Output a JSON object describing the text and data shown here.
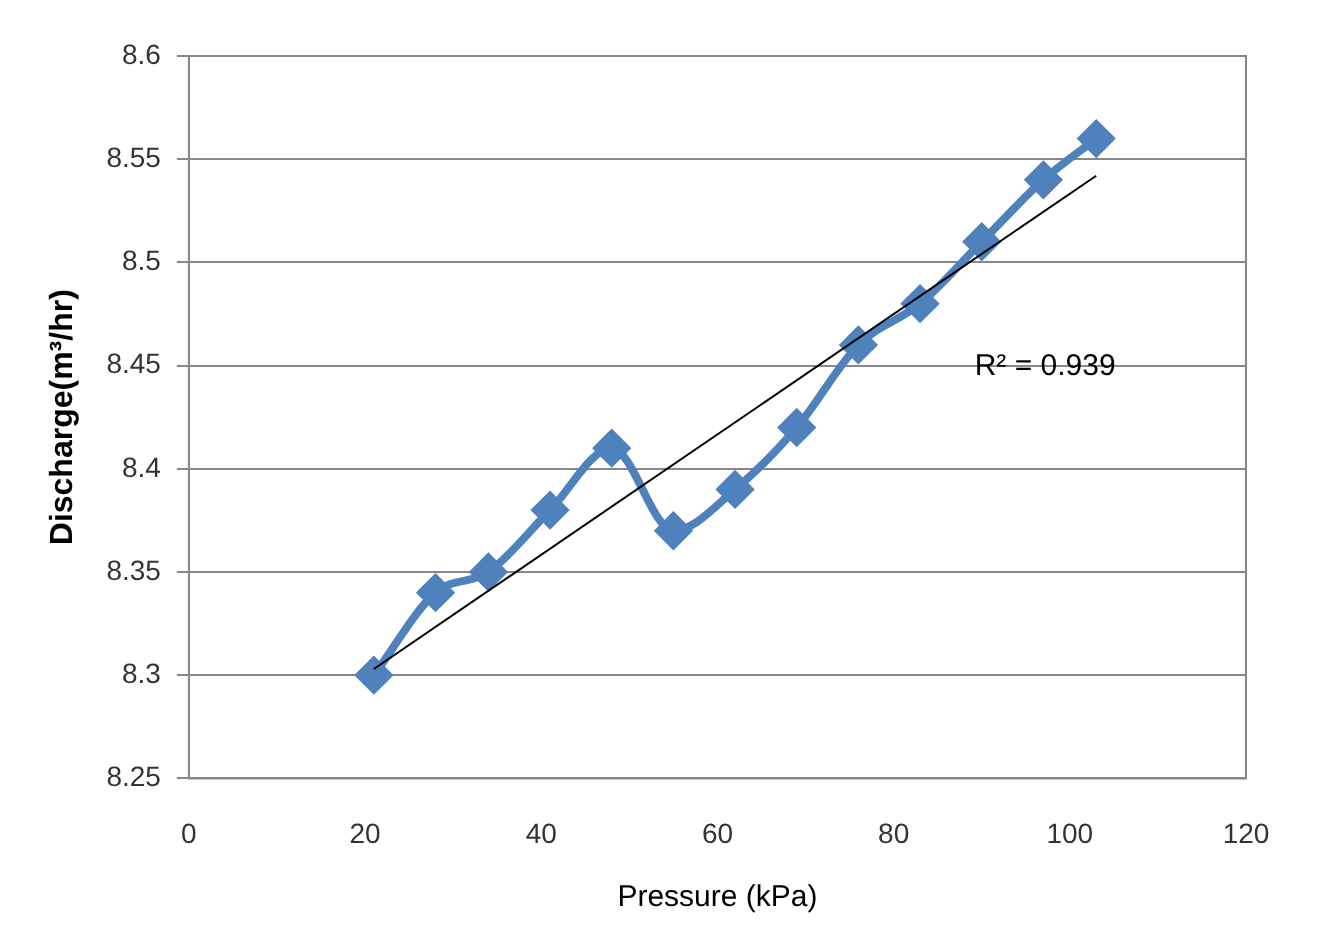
{
  "chart_data": {
    "type": "line",
    "xlabel": "Pressure (kPa)",
    "ylabel": "Discharge(m³/hr)",
    "x": [
      21,
      28,
      34,
      41,
      48,
      55,
      62,
      69,
      76,
      83,
      90,
      97,
      103
    ],
    "series": [
      {
        "color": "#4f81bd",
        "marker": "diamond",
        "values": [
          8.3,
          8.34,
          8.35,
          8.38,
          8.41,
          8.37,
          8.39,
          8.42,
          8.46,
          8.48,
          8.51,
          8.54,
          8.56
        ]
      },
      {
        "color": "#000000",
        "marker": "none",
        "x": [
          21,
          103
        ],
        "values": [
          8.303,
          8.542
        ]
      }
    ],
    "xlim": [
      0,
      120
    ],
    "xticks": [
      0,
      20,
      40,
      60,
      80,
      100,
      120
    ],
    "ylim": [
      8.25,
      8.6
    ],
    "yticks": [
      8.25,
      8.3,
      8.35,
      8.4,
      8.45,
      8.5,
      8.55,
      8.6
    ],
    "grid": "y",
    "legend": false,
    "annotations": [
      "R² = 0.939"
    ]
  }
}
